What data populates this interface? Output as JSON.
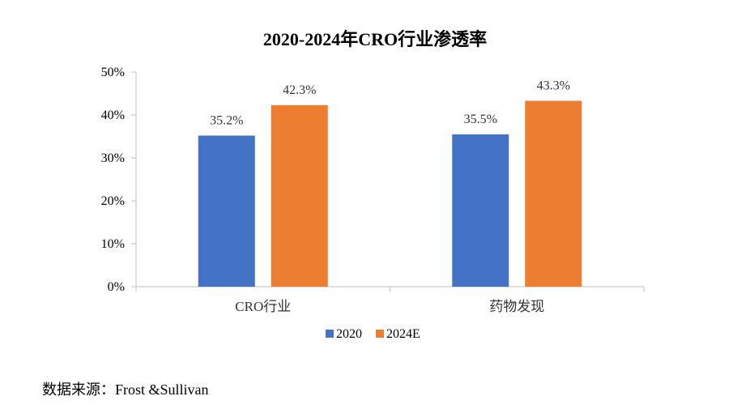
{
  "chart_data": {
    "type": "bar",
    "title": "2020-2024年CRO行业渗透率",
    "categories": [
      "CRO行业",
      "药物发现"
    ],
    "series": [
      {
        "name": "2020",
        "values": [
          35.2,
          35.5
        ],
        "labels": [
          "35.2%",
          "35.5%"
        ],
        "color": "#4472C4"
      },
      {
        "name": "2024E",
        "values": [
          42.3,
          43.3
        ],
        "labels": [
          "42.3%",
          "43.3%"
        ],
        "color": "#ED7D31"
      }
    ],
    "ylim": [
      0,
      50
    ],
    "yticks": [
      0,
      10,
      20,
      30,
      40,
      50
    ],
    "ytick_labels": [
      "0%",
      "10%",
      "20%",
      "30%",
      "40%",
      "50%"
    ],
    "xlabel": "",
    "ylabel": "",
    "grid": false,
    "legend_position": "bottom"
  },
  "source": {
    "label": "数据来源：Frost &Sullivan"
  }
}
